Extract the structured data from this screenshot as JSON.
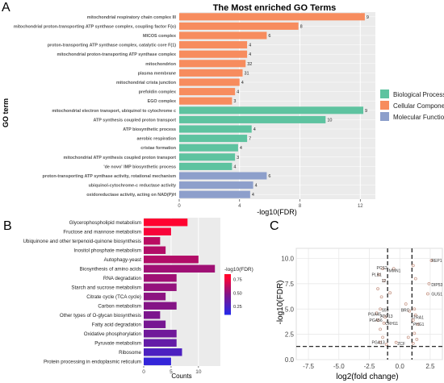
{
  "panels": {
    "a": "A",
    "b": "B",
    "c": "C"
  },
  "chart_data": [
    {
      "type": "bar",
      "orientation": "horizontal",
      "title": "The Most enriched GO Terms",
      "ylabel": "GO term",
      "xlabel": "-log10(FDR)",
      "xlim": [
        0,
        13
      ],
      "xticks": [
        0,
        4,
        8,
        12
      ],
      "grid": true,
      "legend_position": "right",
      "categories_colors": {
        "Biological Process": "#5ec3a0",
        "Cellular Component": "#f78c5e",
        "Molecular Function": "#8d9fcb"
      },
      "legend": [
        "Biological Process",
        "Cellular Component",
        "Molecular Function"
      ],
      "bars": [
        {
          "term": "mitochondrial respiratory chain complex III",
          "value": 12.3,
          "count": "9",
          "category": "Cellular Component"
        },
        {
          "term": "mitochondrial proton-transporting ATP synthase complex, coupling factor F(o)",
          "value": 7.9,
          "count": "8",
          "category": "Cellular Component"
        },
        {
          "term": "MICOS complex",
          "value": 5.8,
          "count": "6",
          "category": "Cellular Component"
        },
        {
          "term": "proton-transporting ATP synthase complex, catalytic core F(1)",
          "value": 4.5,
          "count": "4",
          "category": "Cellular Component"
        },
        {
          "term": "mitochondrial proton-transporting ATP synthase complex",
          "value": 4.5,
          "count": "4",
          "category": "Cellular Component"
        },
        {
          "term": "mitochondrion",
          "value": 4.4,
          "count": "32",
          "category": "Cellular Component"
        },
        {
          "term": "plasma membrane",
          "value": 4.2,
          "count": "31",
          "category": "Cellular Component"
        },
        {
          "term": "mitochondrial crista junction",
          "value": 4.0,
          "count": "4",
          "category": "Cellular Component"
        },
        {
          "term": "prefoldin complex",
          "value": 3.7,
          "count": "4",
          "category": "Cellular Component"
        },
        {
          "term": "EGO complex",
          "value": 3.5,
          "count": "3",
          "category": "Cellular Component"
        },
        {
          "term": "mitochondrial electron transport, ubiquinol to cytochrome c",
          "value": 12.2,
          "count": "9",
          "category": "Biological Process"
        },
        {
          "term": "ATP synthesis coupled proton transport",
          "value": 9.7,
          "count": "10",
          "category": "Biological Process"
        },
        {
          "term": "ATP biosynthetic process",
          "value": 4.8,
          "count": "4",
          "category": "Biological Process"
        },
        {
          "term": "aerobic respiration",
          "value": 4.5,
          "count": "7",
          "category": "Biological Process"
        },
        {
          "term": "cristae formation",
          "value": 3.9,
          "count": "4",
          "category": "Biological Process"
        },
        {
          "term": "mitochondrial ATP synthesis coupled proton transport",
          "value": 3.7,
          "count": "3",
          "category": "Biological Process"
        },
        {
          "term": "'de novo' IMP biosynthetic process",
          "value": 3.5,
          "count": "4",
          "category": "Biological Process"
        },
        {
          "term": "proton-transporting ATP synthase activity, rotational mechanism",
          "value": 5.8,
          "count": "6",
          "category": "Molecular Function"
        },
        {
          "term": "ubiquinol-cytochrome-c reductase activity",
          "value": 4.9,
          "count": "4",
          "category": "Molecular Function"
        },
        {
          "term": "oxidoreductase activity, acting on NAD(P)H",
          "value": 4.7,
          "count": "4",
          "category": "Molecular Function"
        }
      ]
    },
    {
      "type": "bar",
      "orientation": "horizontal",
      "xlabel": "Counts",
      "xlim": [
        0,
        14
      ],
      "xticks": [
        0,
        5,
        10
      ],
      "colorbar_label": "-log10(FDR)",
      "colorbar_ticks": [
        "0.75",
        "0.50",
        "0.25"
      ],
      "colorbar_range": [
        0.1,
        0.85
      ],
      "legend_position": "right",
      "bars": [
        {
          "pathway": "Glycerophospholipid metabolism",
          "count": 8,
          "logfdr": 0.82
        },
        {
          "pathway": "Fructose and mannose metabolism",
          "count": 5,
          "logfdr": 0.78
        },
        {
          "pathway": "Ubiquinone and other terpenoid-quinone biosynthesis",
          "count": 3,
          "logfdr": 0.62
        },
        {
          "pathway": "Inositol phosphate metabolism",
          "count": 4,
          "logfdr": 0.6
        },
        {
          "pathway": "Autophagy-yeast",
          "count": 10,
          "logfdr": 0.6
        },
        {
          "pathway": "Biosynthesis of amino acids",
          "count": 13,
          "logfdr": 0.55
        },
        {
          "pathway": "RNA degradation",
          "count": 6,
          "logfdr": 0.55
        },
        {
          "pathway": "Starch and sucrose metabolism",
          "count": 6,
          "logfdr": 0.52
        },
        {
          "pathway": "Citrate cycle (TCA cycle)",
          "count": 4,
          "logfdr": 0.5
        },
        {
          "pathway": "Carbon metabolism",
          "count": 6,
          "logfdr": 0.48
        },
        {
          "pathway": "Other types of O-glycan biosynthesis",
          "count": 3,
          "logfdr": 0.45
        },
        {
          "pathway": "Fatty acid degradation",
          "count": 4,
          "logfdr": 0.43
        },
        {
          "pathway": "Oxidative phosphorylation",
          "count": 6,
          "logfdr": 0.4
        },
        {
          "pathway": "Pyruvate metabolism",
          "count": 6,
          "logfdr": 0.35
        },
        {
          "pathway": "Ribosome",
          "count": 7,
          "logfdr": 0.25
        },
        {
          "pathway": "Protein processing in endoplasmic reticulum",
          "count": 5,
          "logfdr": 0.15
        }
      ]
    },
    {
      "type": "scatter",
      "xlabel": "log2(fold change)",
      "ylabel": "-log10(FDR)",
      "xlim": [
        -8.5,
        3.5
      ],
      "ylim": [
        0,
        11
      ],
      "xticks": [
        "-7.5",
        "-5.0",
        "-2.5",
        "0.0",
        "2.5"
      ],
      "yticks": [
        "0.0",
        "2.5",
        "5.0",
        "7.5",
        "10.0"
      ],
      "thresholds": {
        "x": [
          -1,
          1
        ],
        "y": 1.3
      },
      "grid": true,
      "point_color": "#c99a8a",
      "labels": [
        {
          "text": "REP1",
          "x": 2.6,
          "y": 9.8
        },
        {
          "text": "DIP53",
          "x": 2.6,
          "y": 7.4
        },
        {
          "text": "GUS1",
          "x": 2.6,
          "y": 6.5
        },
        {
          "text": "PCS2",
          "x": -1.9,
          "y": 9.1
        },
        {
          "text": "MMN1",
          "x": -0.9,
          "y": 8.8
        },
        {
          "text": "PLB1",
          "x": -2.3,
          "y": 8.4
        },
        {
          "text": "12",
          "x": -1.5,
          "y": 7.8
        },
        {
          "text": "S59",
          "x": -1.5,
          "y": 4.9
        },
        {
          "text": "BRC",
          "x": 0.1,
          "y": 4.9
        },
        {
          "text": "PGA45",
          "x": -2.6,
          "y": 4.5
        },
        {
          "text": "ATG13",
          "x": -1.6,
          "y": 4.3
        },
        {
          "text": "STRA1",
          "x": 0.9,
          "y": 4.2
        },
        {
          "text": "PGA56",
          "x": -2.5,
          "y": 3.9
        },
        {
          "text": "CRH11",
          "x": -1.2,
          "y": 3.6
        },
        {
          "text": "PHG1",
          "x": 1.1,
          "y": 3.5
        },
        {
          "text": "PGA13",
          "x": -2.3,
          "y": 1.7
        },
        {
          "text": "ZCF",
          "x": -0.2,
          "y": 1.6
        }
      ],
      "points": [
        {
          "x": 2.6,
          "y": 9.8
        },
        {
          "x": 2.4,
          "y": 7.5
        },
        {
          "x": 2.3,
          "y": 6.5
        },
        {
          "x": 1.1,
          "y": 9.3
        },
        {
          "x": 1.3,
          "y": 8.0
        },
        {
          "x": 0.5,
          "y": 5.5
        },
        {
          "x": -0.5,
          "y": 9.0
        },
        {
          "x": -1.4,
          "y": 9.0
        },
        {
          "x": -1.7,
          "y": 8.4
        },
        {
          "x": -1.3,
          "y": 7.8
        },
        {
          "x": -1.8,
          "y": 7.0
        },
        {
          "x": -1.5,
          "y": 6.2
        },
        {
          "x": -1.6,
          "y": 5.0
        },
        {
          "x": -1.9,
          "y": 4.6
        },
        {
          "x": -1.2,
          "y": 4.2
        },
        {
          "x": -1.8,
          "y": 3.9
        },
        {
          "x": -1.3,
          "y": 3.6
        },
        {
          "x": -1.6,
          "y": 3.0
        },
        {
          "x": -1.4,
          "y": 2.2
        },
        {
          "x": -1.6,
          "y": 1.7
        },
        {
          "x": -1.1,
          "y": 1.5
        },
        {
          "x": 1.2,
          "y": 5.0
        },
        {
          "x": 1.3,
          "y": 4.4
        },
        {
          "x": 1.1,
          "y": 3.9
        },
        {
          "x": 1.5,
          "y": 3.5
        },
        {
          "x": 1.2,
          "y": 2.6
        },
        {
          "x": 1.4,
          "y": 2.0
        },
        {
          "x": 1.1,
          "y": 1.6
        },
        {
          "x": 0.8,
          "y": 4.8
        },
        {
          "x": 0.7,
          "y": 2.2
        },
        {
          "x": -0.8,
          "y": 6.6
        },
        {
          "x": -0.3,
          "y": 1.7
        }
      ]
    }
  ]
}
